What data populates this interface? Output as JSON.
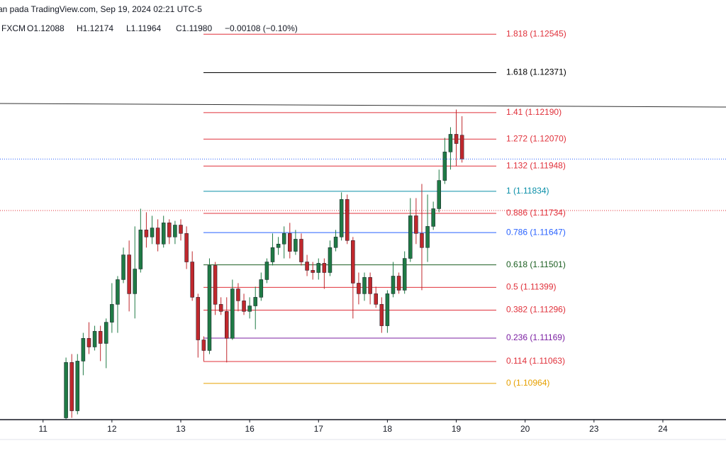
{
  "chart_data": {
    "type": "candlestick",
    "title": "an pada TradingView.com, Sep 19, 2024 02:21 UTC-5",
    "legend_text": [
      "FXCM",
      "O1.12088",
      "H1.12174",
      "L1.11964",
      "C1.11980",
      "−0.00108 (−0.10%)"
    ],
    "up_color": "#1f7a45",
    "down_color": "#c0282d",
    "x": [
      8,
      10,
      12,
      14,
      16,
      18,
      20,
      22,
      24,
      26,
      28,
      30,
      32,
      34,
      36,
      38,
      40,
      42,
      44,
      46,
      48,
      50,
      52,
      54,
      56,
      58,
      60,
      62,
      64,
      66,
      68,
      70,
      72,
      74,
      76,
      78,
      80,
      82,
      84,
      86,
      88,
      90,
      92,
      94,
      96,
      98,
      100,
      102,
      104,
      106,
      108,
      110,
      112,
      114,
      116,
      118,
      120,
      122,
      124,
      126,
      128,
      130,
      132,
      134,
      136,
      138,
      140,
      142,
      144,
      146
    ],
    "open": [
      1.10808,
      1.11059,
      1.1084,
      1.11065,
      1.11168,
      1.11129,
      1.112,
      1.11145,
      1.11241,
      1.11322,
      1.11434,
      1.11546,
      1.1137,
      1.11482,
      1.11659,
      1.11627,
      1.11668,
      1.11595,
      1.11691,
      1.11627,
      1.11681,
      1.11643,
      1.11514,
      1.11354,
      1.11161,
      1.11113,
      1.11498,
      1.11322,
      1.1129,
      1.11168,
      1.11392,
      1.11338,
      1.1129,
      1.11315,
      1.11354,
      1.11434,
      1.11514,
      1.11579,
      1.11595,
      1.11643,
      1.11562,
      1.11617,
      1.11514,
      1.11476,
      1.11466,
      1.11508,
      1.11466,
      1.11579,
      1.11627,
      1.11797,
      1.11611,
      1.11418,
      1.1137,
      1.11444,
      1.1137,
      1.11322,
      1.11225,
      1.1137,
      1.1145,
      1.11386,
      1.1153,
      1.11723,
      1.11643,
      1.11579,
      1.11675,
      1.11755,
      1.11883,
      1.12012,
      1.12092,
      1.12088
    ],
    "high": [
      1.11081,
      1.11097,
      1.11097,
      1.11193,
      1.11241,
      1.11225,
      1.11225,
      1.11258,
      1.11418,
      1.1145,
      1.11579,
      1.11611,
      1.11675,
      1.11755,
      1.11739,
      1.11723,
      1.11707,
      1.11723,
      1.11707,
      1.117,
      1.11707,
      1.11675,
      1.11562,
      1.1137,
      1.11177,
      1.1153,
      1.11514,
      1.11354,
      1.11354,
      1.11434,
      1.11418,
      1.1137,
      1.11354,
      1.11402,
      1.11466,
      1.1153,
      1.11643,
      1.11627,
      1.11675,
      1.11691,
      1.11659,
      1.11643,
      1.11546,
      1.11514,
      1.1153,
      1.1153,
      1.11611,
      1.11659,
      1.11829,
      1.11819,
      1.11627,
      1.11466,
      1.11466,
      1.11466,
      1.11402,
      1.11354,
      1.11386,
      1.11514,
      1.11466,
      1.11562,
      1.11803,
      1.11803,
      1.11867,
      1.11819,
      1.11787,
      1.11932,
      1.12076,
      1.12124,
      1.12204,
      1.12174
    ],
    "low": [
      1.10792,
      1.10808,
      1.10824,
      1.11001,
      1.11097,
      1.11113,
      1.11065,
      1.11033,
      1.11193,
      1.11193,
      1.11418,
      1.1129,
      1.11258,
      1.11466,
      1.11579,
      1.11595,
      1.11562,
      1.11579,
      1.11595,
      1.11595,
      1.11611,
      1.11482,
      1.11338,
      1.11081,
      1.11065,
      1.11097,
      1.11274,
      1.11274,
      1.11059,
      1.11161,
      1.1129,
      1.11274,
      1.11258,
      1.11209,
      1.11338,
      1.11418,
      1.11498,
      1.11546,
      1.1153,
      1.1153,
      1.11546,
      1.11498,
      1.1145,
      1.11434,
      1.11434,
      1.11392,
      1.1145,
      1.11562,
      1.11611,
      1.11595,
      1.11258,
      1.11322,
      1.11338,
      1.11322,
      1.11306,
      1.11193,
      1.11193,
      1.11354,
      1.1137,
      1.1137,
      1.11514,
      1.11595,
      1.11386,
      1.11514,
      1.11659,
      1.11739,
      1.11867,
      1.11932,
      1.11948,
      1.11964
    ],
    "close": [
      1.11059,
      1.1084,
      1.11065,
      1.11168,
      1.11129,
      1.112,
      1.11145,
      1.11241,
      1.11322,
      1.11434,
      1.11546,
      1.1137,
      1.11482,
      1.11659,
      1.11627,
      1.11668,
      1.11595,
      1.11691,
      1.11627,
      1.11681,
      1.11643,
      1.11514,
      1.11354,
      1.11161,
      1.11113,
      1.11498,
      1.11322,
      1.1129,
      1.11168,
      1.11392,
      1.11338,
      1.1129,
      1.11315,
      1.11354,
      1.11434,
      1.11514,
      1.11579,
      1.11595,
      1.11643,
      1.11562,
      1.11617,
      1.11514,
      1.11476,
      1.11466,
      1.11508,
      1.11466,
      1.11579,
      1.11627,
      1.11797,
      1.11611,
      1.11418,
      1.1137,
      1.11444,
      1.1137,
      1.11322,
      1.11225,
      1.1137,
      1.1145,
      1.11386,
      1.1153,
      1.11723,
      1.11643,
      1.11579,
      1.11675,
      1.11755,
      1.11883,
      1.12012,
      1.12092,
      1.1205,
      1.1198
    ],
    "xlim": [
      -15,
      238
    ],
    "ylim": [
      1.108,
      1.127
    ],
    "xticks": [
      {
        "value": 0,
        "label": "11"
      },
      {
        "value": 24,
        "label": "12"
      },
      {
        "value": 48,
        "label": "13"
      },
      {
        "value": 72,
        "label": "16"
      },
      {
        "value": 96,
        "label": "17"
      },
      {
        "value": 120,
        "label": "18"
      },
      {
        "value": 144,
        "label": "19"
      },
      {
        "value": 168,
        "label": "20"
      },
      {
        "value": 192,
        "label": "23"
      },
      {
        "value": 216,
        "label": "24"
      }
    ],
    "fib_levels": [
      {
        "label": "1.818 (1.12545)",
        "value": 1.12545,
        "color": "#e0303a"
      },
      {
        "label": "1.618 (1.12371)",
        "value": 1.12371,
        "color": "#000000"
      },
      {
        "label": "1.41 (1.12190)",
        "value": 1.1219,
        "color": "#e0303a"
      },
      {
        "label": "1.272 (1.12070)",
        "value": 1.1207,
        "color": "#e0303a"
      },
      {
        "label": "1.132 (1.11948)",
        "value": 1.11948,
        "color": "#e0303a"
      },
      {
        "label": "1 (1.11834)",
        "value": 1.11834,
        "color": "#0a8fa8"
      },
      {
        "label": "0.886 (1.11734)",
        "value": 1.11734,
        "color": "#e0303a"
      },
      {
        "label": "0.786 (1.11647)",
        "value": 1.11647,
        "color": "#2962ff"
      },
      {
        "label": "0.618 (1.11501)",
        "value": 1.11501,
        "color": "#1b5e20"
      },
      {
        "label": "0.5 (1.11399)",
        "value": 1.11399,
        "color": "#e0303a"
      },
      {
        "label": "0.382 (1.11296)",
        "value": 1.11296,
        "color": "#e0303a"
      },
      {
        "label": "0.236 (1.11169)",
        "value": 1.11169,
        "color": "#7b1fa2"
      },
      {
        "label": "0.114 (1.11063)",
        "value": 1.11063,
        "color": "#e0303a"
      },
      {
        "label": "0 (1.10964)",
        "value": 1.10964,
        "color": "#e6a000"
      }
    ]
  }
}
